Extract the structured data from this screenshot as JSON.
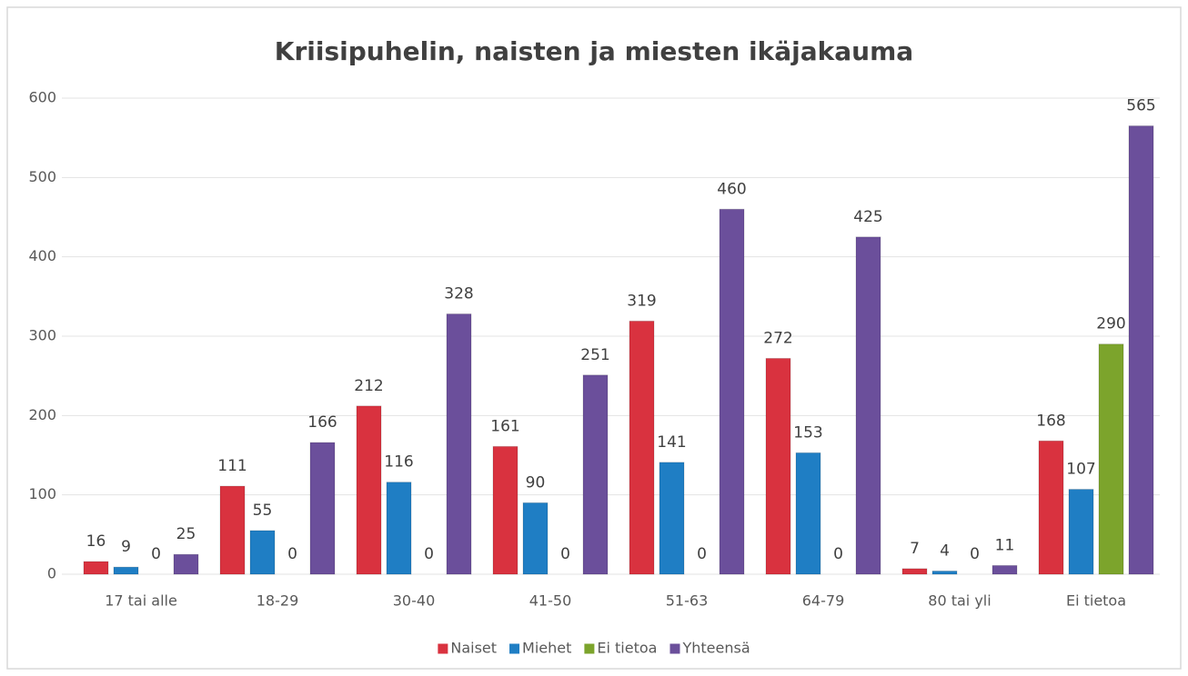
{
  "chart_data": {
    "type": "bar",
    "title": "Kriisipuhelin, naisten ja miesten ikäjakauma",
    "categories": [
      "17 tai alle",
      "18-29",
      "30-40",
      "41-50",
      "51-63",
      "64-79",
      "80 tai yli",
      "Ei tietoa"
    ],
    "series": [
      {
        "name": "Naiset",
        "color": "#d9323f",
        "values": [
          16,
          111,
          212,
          161,
          319,
          272,
          7,
          168
        ]
      },
      {
        "name": "Miehet",
        "color": "#1f7ec4",
        "values": [
          9,
          55,
          116,
          90,
          141,
          153,
          4,
          107
        ]
      },
      {
        "name": "Ei tietoa",
        "color": "#7ca42c",
        "values": [
          0,
          0,
          0,
          0,
          0,
          0,
          0,
          290
        ]
      },
      {
        "name": "Yhteensä",
        "color": "#6b4f9b",
        "values": [
          25,
          166,
          328,
          251,
          460,
          425,
          11,
          565
        ]
      }
    ],
    "ylim": [
      0,
      600
    ],
    "yticks": [
      0,
      100,
      200,
      300,
      400,
      500,
      600
    ],
    "grid": true,
    "legend": "bottom"
  }
}
